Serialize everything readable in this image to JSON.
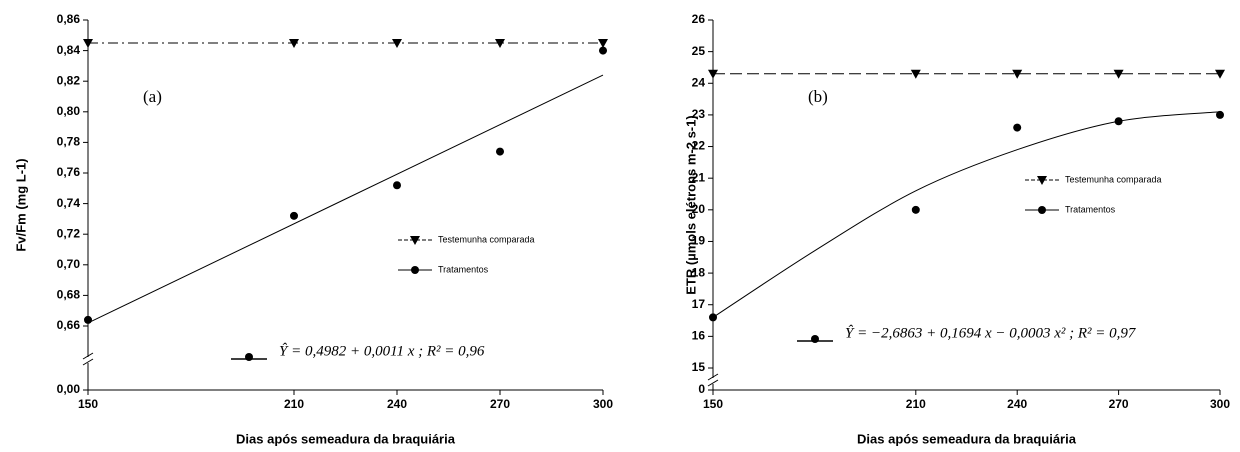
{
  "chart_data": [
    {
      "type": "line",
      "panel_label": "(a)",
      "x_label": "Dias após semeadura da braquiária",
      "y_label": "Fv/Fm (mg L-1)",
      "xlim": [
        150,
        300
      ],
      "xticks": [
        150,
        210,
        240,
        270,
        300
      ],
      "ylim": [
        0.66,
        0.86
      ],
      "yticks": [
        {
          "value": 0.66,
          "label": "0,66"
        },
        {
          "value": 0.68,
          "label": "0,68"
        },
        {
          "value": 0.7,
          "label": "0,70"
        },
        {
          "value": 0.72,
          "label": "0,72"
        },
        {
          "value": 0.74,
          "label": "0,74"
        },
        {
          "value": 0.76,
          "label": "0,76"
        },
        {
          "value": 0.78,
          "label": "0,78"
        },
        {
          "value": 0.8,
          "label": "0,80"
        },
        {
          "value": 0.82,
          "label": "0,82"
        },
        {
          "value": 0.84,
          "label": "0,84"
        },
        {
          "value": 0.86,
          "label": "0,86"
        }
      ],
      "y_break_tick": {
        "value": 0,
        "label": "0,00"
      },
      "x": [
        150,
        210,
        240,
        270,
        300
      ],
      "series": [
        {
          "name": "Testemunha comparada",
          "color": "#000000",
          "marker": "triangle",
          "dash": "dashdot",
          "line": true,
          "values": [
            0.845,
            0.845,
            0.845,
            0.845,
            0.845
          ]
        },
        {
          "name": "Tratamentos",
          "color": "#000000",
          "marker": "circle",
          "dash": "solid",
          "line": false,
          "values": [
            0.664,
            0.732,
            0.752,
            0.774,
            0.84
          ]
        }
      ],
      "fit": {
        "x": [
          150,
          300
        ],
        "values": [
          0.662,
          0.824
        ]
      },
      "equation": "Ŷ = 0,4982 + 0,0011 x ; R² = 0,96"
    },
    {
      "type": "line",
      "panel_label": "(b)",
      "x_label": "Dias após semeadura da braquiária",
      "y_label": "ETR  (µmols elétrons m-2 s-1)",
      "xlim": [
        150,
        300
      ],
      "xticks": [
        150,
        210,
        240,
        270,
        300
      ],
      "ylim": [
        15,
        26
      ],
      "yticks": [
        15,
        16,
        17,
        18,
        19,
        20,
        21,
        22,
        23,
        24,
        25,
        26
      ],
      "y_break_tick": 0,
      "x": [
        150,
        210,
        240,
        270,
        300
      ],
      "series": [
        {
          "name": "Testemunha comparada",
          "color": "#000000",
          "marker": "triangle",
          "dash": "dashed",
          "line": true,
          "values": [
            24.3,
            24.3,
            24.3,
            24.3,
            24.3
          ]
        },
        {
          "name": "Tratamentos",
          "color": "#000000",
          "marker": "circle",
          "dash": "solid",
          "line": false,
          "values": [
            16.6,
            20.0,
            22.6,
            22.8,
            23.0
          ]
        }
      ],
      "fit": {
        "x": [
          150,
          180,
          210,
          240,
          270,
          300
        ],
        "values": [
          16.6,
          18.7,
          20.6,
          21.9,
          22.8,
          23.1
        ]
      },
      "equation": "Ŷ = −2,6863 + 0,1694 x − 0,0003 x² ; R² = 0,97"
    }
  ]
}
